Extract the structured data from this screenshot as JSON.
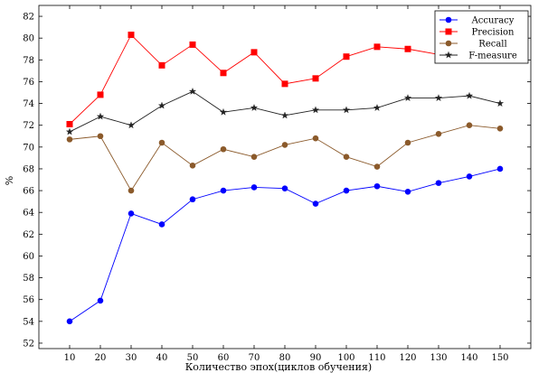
{
  "chart_data": {
    "type": "line",
    "title": "",
    "xlabel": "Количество эпох(циклов обучения)",
    "ylabel": "%",
    "x": [
      10,
      20,
      30,
      40,
      50,
      60,
      70,
      80,
      90,
      100,
      110,
      120,
      130,
      140,
      150
    ],
    "x_ticks": [
      "10",
      "20",
      "30",
      "40",
      "50",
      "60",
      "70",
      "80",
      "90",
      "100",
      "110",
      "120",
      "130",
      "140",
      "150"
    ],
    "xlim": [
      0,
      160
    ],
    "ylim": [
      51.5,
      83
    ],
    "y_ticks": [
      "52",
      "54",
      "56",
      "58",
      "60",
      "62",
      "64",
      "66",
      "68",
      "70",
      "72",
      "74",
      "76",
      "78",
      "80",
      "82"
    ],
    "grid": false,
    "legend_position": "top-right",
    "series": [
      {
        "name": "Accuracy",
        "color": "#0000ff",
        "marker": "circle",
        "values": [
          54.0,
          55.9,
          63.9,
          62.9,
          65.2,
          66.0,
          66.3,
          66.2,
          64.8,
          66.0,
          66.4,
          65.9,
          66.7,
          67.3,
          68.0
        ]
      },
      {
        "name": "Precision",
        "color": "#ff0000",
        "marker": "square",
        "values": [
          72.1,
          74.8,
          80.3,
          77.5,
          79.4,
          76.8,
          78.7,
          75.8,
          76.3,
          78.3,
          79.2,
          79.0,
          78.5,
          78.5,
          78.6
        ]
      },
      {
        "name": "Recall",
        "color": "#8b5a2b",
        "marker": "circle",
        "values": [
          70.7,
          71.0,
          66.0,
          70.4,
          68.3,
          69.8,
          69.1,
          70.2,
          70.8,
          69.1,
          68.2,
          70.4,
          71.2,
          72.0,
          71.7
        ]
      },
      {
        "name": "F-measure",
        "color": "#222222",
        "marker": "star",
        "values": [
          71.4,
          72.8,
          72.0,
          73.8,
          75.1,
          73.2,
          73.6,
          72.9,
          73.4,
          73.4,
          73.6,
          74.5,
          74.5,
          74.7,
          74.0
        ]
      }
    ]
  }
}
